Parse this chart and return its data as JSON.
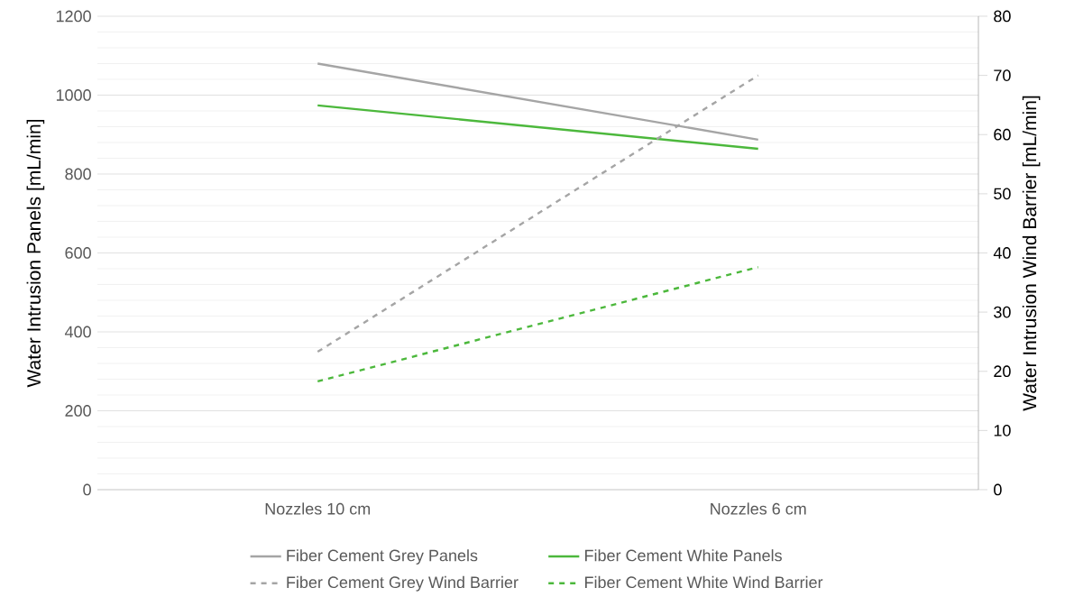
{
  "chart_data": {
    "type": "line",
    "categories": [
      "Nozzles 10 cm",
      "Nozzles 6 cm"
    ],
    "ylabel": "Water Intrusion Panels [mL/min]",
    "y2label": "Water Intrusion Wind Barrier [mL/min]",
    "ylim": [
      0,
      1200
    ],
    "yticks": [
      0,
      200,
      400,
      600,
      800,
      1000,
      1200
    ],
    "y2lim": [
      0,
      80
    ],
    "y2ticks": [
      0,
      10,
      20,
      30,
      40,
      50,
      60,
      70,
      80
    ],
    "grid": "y",
    "legend": "bottom",
    "marker": "none",
    "series": [
      {
        "name": "Fiber Cement Grey Panels",
        "color": "#a5a5a5",
        "values": [
          1080,
          887
        ],
        "line_style": "solid"
      },
      {
        "name": "Fiber Cement White Panels",
        "color": "#4cb83c",
        "values": [
          974,
          864
        ],
        "line_style": "solid"
      },
      {
        "name": "Fiber Cement Grey Wind Barrier",
        "color": "#a5a5a5",
        "values": [
          23.3,
          70
        ],
        "line_style": "dashed",
        "axis": "y2"
      },
      {
        "name": "Fiber Cement White Wind Barrier",
        "color": "#4cb83c",
        "values": [
          18.3,
          37.6
        ],
        "line_style": "dashed",
        "axis": "y2"
      }
    ]
  }
}
